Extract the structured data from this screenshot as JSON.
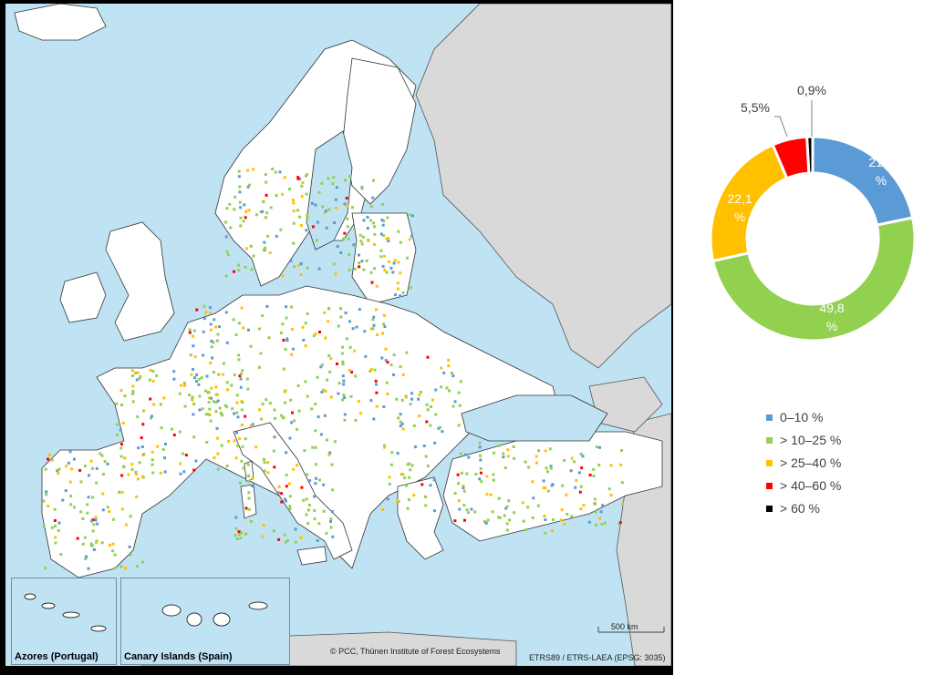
{
  "map": {
    "insets": [
      {
        "label": "Azores (Portugal)"
      },
      {
        "label": "Canary Islands (Spain)"
      }
    ],
    "credit": "© PCC, Thünen Institute of Forest Ecosystems",
    "projection": "ETRS89 / ETRS-LAEA (EPSG: 3035)",
    "scale_bar": "500 km",
    "colors": {
      "sea": "#bfe3f3",
      "land_in": "#ffffff",
      "land_out": "#d9d9d9",
      "border": "#333333"
    }
  },
  "chart_data": {
    "type": "pie",
    "donut": true,
    "slices": [
      {
        "label": "0–10 %",
        "value": 21.7,
        "display": [
          "21,7",
          "%"
        ],
        "color": "#5b9bd5"
      },
      {
        "label": "> 10–25 %",
        "value": 49.8,
        "display": [
          "49,8",
          "%"
        ],
        "color": "#92d050"
      },
      {
        "label": "> 25–40 %",
        "value": 22.1,
        "display": [
          "22,1",
          "%"
        ],
        "color": "#ffc000"
      },
      {
        "label": "> 40–60 %",
        "value": 5.5,
        "display": [
          "5,5%"
        ],
        "color": "#ff0000"
      },
      {
        "label": "> 60 %",
        "value": 0.9,
        "display": [
          "0,9%"
        ],
        "color": "#000000"
      }
    ]
  }
}
